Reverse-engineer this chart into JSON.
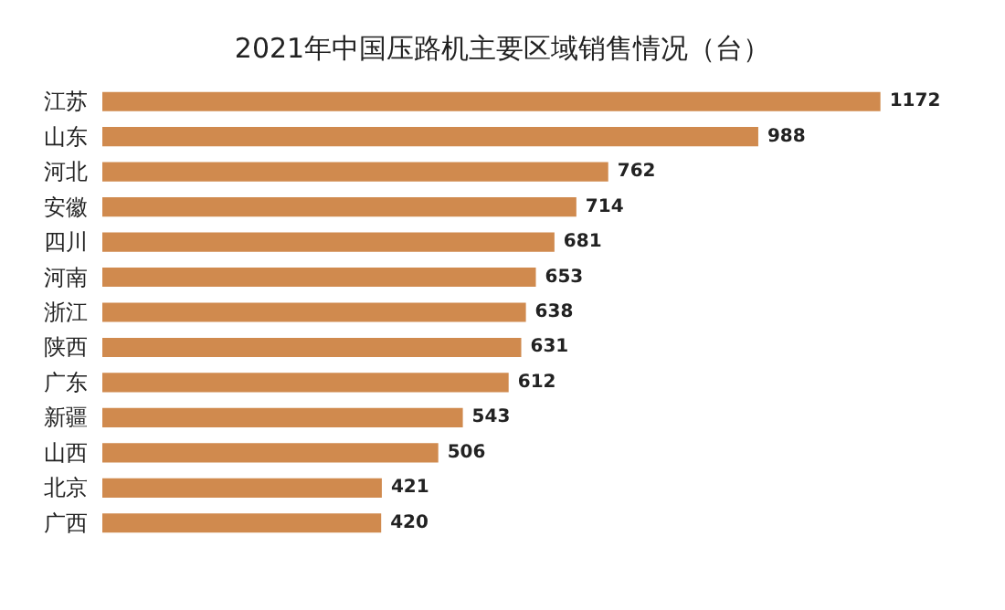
{
  "chart_data": {
    "type": "bar",
    "orientation": "horizontal",
    "title": "2021年中国压路机主要区域销售情况（台）",
    "categories": [
      "江苏",
      "山东",
      "河北",
      "安徽",
      "四川",
      "河南",
      "浙江",
      "陕西",
      "广东",
      "新疆",
      "山西",
      "北京",
      "广西"
    ],
    "values": [
      1172,
      988,
      762,
      714,
      681,
      653,
      638,
      631,
      612,
      543,
      506,
      421,
      420
    ],
    "color": "#d08a4e",
    "data_labels": true
  }
}
